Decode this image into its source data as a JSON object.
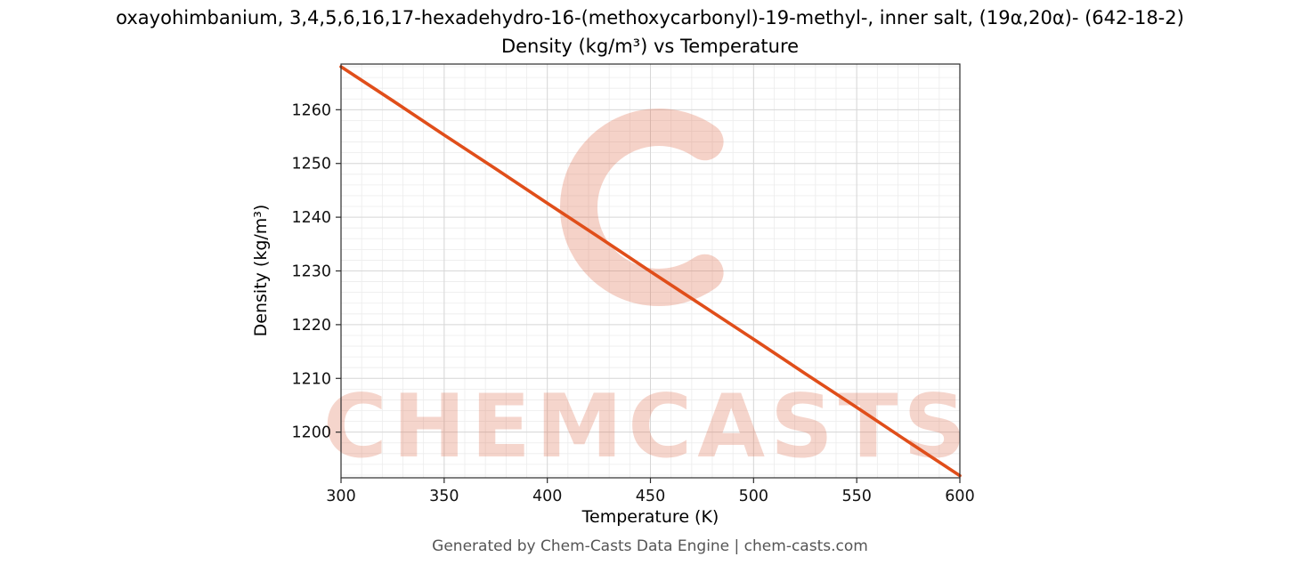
{
  "title_line1": "oxayohimbanium, 3,4,5,6,16,17-hexadehydro-16-(methoxycarbonyl)-19-methyl-, inner salt, (19α,20α)- (642-18-2)",
  "title_line2": "Density (kg/m³) vs Temperature",
  "footer": "Generated by Chem-Casts Data Engine | chem-casts.com",
  "watermark": {
    "text": "CHEMCASTS",
    "color": "#dd6a4a"
  },
  "chart_data": {
    "type": "line",
    "title": "Density (kg/m³) vs Temperature",
    "xlabel": "Temperature (K)",
    "ylabel": "Density (kg/m³)",
    "x": [
      300,
      325,
      350,
      375,
      400,
      425,
      450,
      475,
      500,
      525,
      550,
      575,
      600
    ],
    "y": [
      1268.0,
      1261.7,
      1255.3,
      1249.0,
      1242.6,
      1236.3,
      1229.9,
      1223.6,
      1217.3,
      1210.9,
      1204.6,
      1198.2,
      1191.9
    ],
    "xlim": [
      300,
      600
    ],
    "ylim": [
      1191.5,
      1268.5
    ],
    "x_ticks": [
      300,
      350,
      400,
      450,
      500,
      550,
      600
    ],
    "y_ticks": [
      1200,
      1210,
      1220,
      1230,
      1240,
      1250,
      1260
    ],
    "minor_x_step": 10,
    "minor_y_step": 2,
    "grid": true,
    "legend": false,
    "line_color": "#e04e1a"
  }
}
